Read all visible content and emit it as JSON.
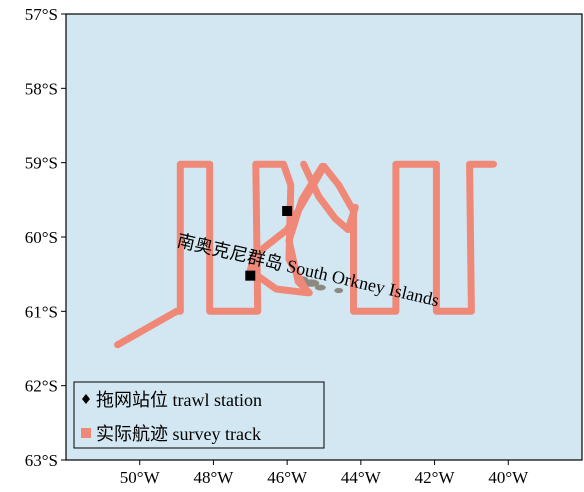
{
  "map": {
    "lon_range": [
      -52,
      -38
    ],
    "lat_range": [
      -63,
      -57
    ],
    "ocean_color": "#d2e7f1",
    "land_color": "#8c8a80",
    "track_color": "#f08878",
    "station_color": "#000000",
    "x_ticks": [
      {
        "value": -50,
        "label": "50°W"
      },
      {
        "value": -48,
        "label": "48°W"
      },
      {
        "value": -46,
        "label": "46°W"
      },
      {
        "value": -44,
        "label": "44°W"
      },
      {
        "value": -42,
        "label": "42°W"
      },
      {
        "value": -40,
        "label": "40°W"
      }
    ],
    "y_ticks": [
      {
        "value": -57,
        "label": "57°S"
      },
      {
        "value": -58,
        "label": "58°S"
      },
      {
        "value": -59,
        "label": "59°S"
      },
      {
        "value": -60,
        "label": "60°S"
      },
      {
        "value": -61,
        "label": "61°S"
      },
      {
        "value": -62,
        "label": "62°S"
      },
      {
        "value": -63,
        "label": "63°S"
      }
    ],
    "island_label": "南奥克尼群岛 South Orkney Islands",
    "survey_track": [
      [
        -50.6,
        -61.45
      ],
      [
        -49.0,
        -61.0
      ],
      [
        -48.9,
        -61.0
      ],
      [
        -48.9,
        -59.02
      ],
      [
        -48.1,
        -59.02
      ],
      [
        -48.1,
        -61.0
      ],
      [
        -46.8,
        -61.0
      ],
      [
        -46.85,
        -59.02
      ],
      [
        -46.1,
        -59.02
      ],
      [
        -45.9,
        -59.3
      ],
      [
        -45.95,
        -60.3
      ],
      [
        -45.45,
        -60.75
      ],
      [
        -46.3,
        -60.7
      ],
      [
        -47.0,
        -60.45
      ],
      [
        -46.9,
        -60.25
      ],
      [
        -46.0,
        -59.9
      ],
      [
        -45.35,
        -59.35
      ],
      [
        -45.0,
        -59.05
      ],
      [
        -44.6,
        -59.3
      ],
      [
        -44.2,
        -59.65
      ],
      [
        -44.2,
        -61.0
      ],
      [
        -43.05,
        -61.0
      ],
      [
        -43.05,
        -59.02
      ],
      [
        -41.95,
        -59.02
      ],
      [
        -41.95,
        -61.0
      ],
      [
        -41.0,
        -61.0
      ],
      [
        -41.05,
        -59.02
      ],
      [
        -40.4,
        -59.02
      ]
    ],
    "survey_track_2": [
      [
        -45.55,
        -59.02
      ],
      [
        -45.15,
        -59.45
      ],
      [
        -44.7,
        -59.75
      ],
      [
        -44.35,
        -59.9
      ],
      [
        -44.15,
        -59.6
      ]
    ],
    "survey_track_3": [
      [
        -45.05,
        -59.05
      ],
      [
        -45.6,
        -59.5
      ],
      [
        -45.95,
        -60.05
      ],
      [
        -45.7,
        -60.6
      ],
      [
        -45.4,
        -60.75
      ]
    ],
    "stations": [
      {
        "lon": -46.0,
        "lat": -59.65
      },
      {
        "lon": -47.0,
        "lat": -60.52
      }
    ],
    "islands": [
      {
        "lon": -45.6,
        "lat": -60.58,
        "rx": 0.18,
        "ry": 0.05
      },
      {
        "lon": -45.35,
        "lat": -60.62,
        "rx": 0.22,
        "ry": 0.05
      },
      {
        "lon": -45.1,
        "lat": -60.68,
        "rx": 0.15,
        "ry": 0.04
      },
      {
        "lon": -44.6,
        "lat": -60.72,
        "rx": 0.12,
        "ry": 0.035
      }
    ]
  },
  "legend": {
    "station_label": "拖网站位 trawl station",
    "track_label": "实际航迹 survey track"
  }
}
